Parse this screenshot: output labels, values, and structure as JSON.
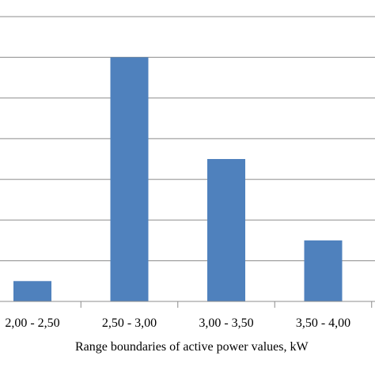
{
  "chart_data": {
    "type": "bar",
    "categories": [
      "2,00 - 2,50",
      "2,50 - 3,00",
      "3,00 - 3,50",
      "3,50 - 4,00"
    ],
    "values": [
      5,
      60,
      35,
      15
    ],
    "ylim": [
      0,
      70
    ],
    "y_step": 10,
    "xlabel": "Range boundaries of active power values, kW",
    "ylabel": "",
    "title": "",
    "grid": "horizontal",
    "colors": {
      "bar": "#4f81bd",
      "grid": "#8c8c8c",
      "axis": "#8c8c8c"
    }
  }
}
